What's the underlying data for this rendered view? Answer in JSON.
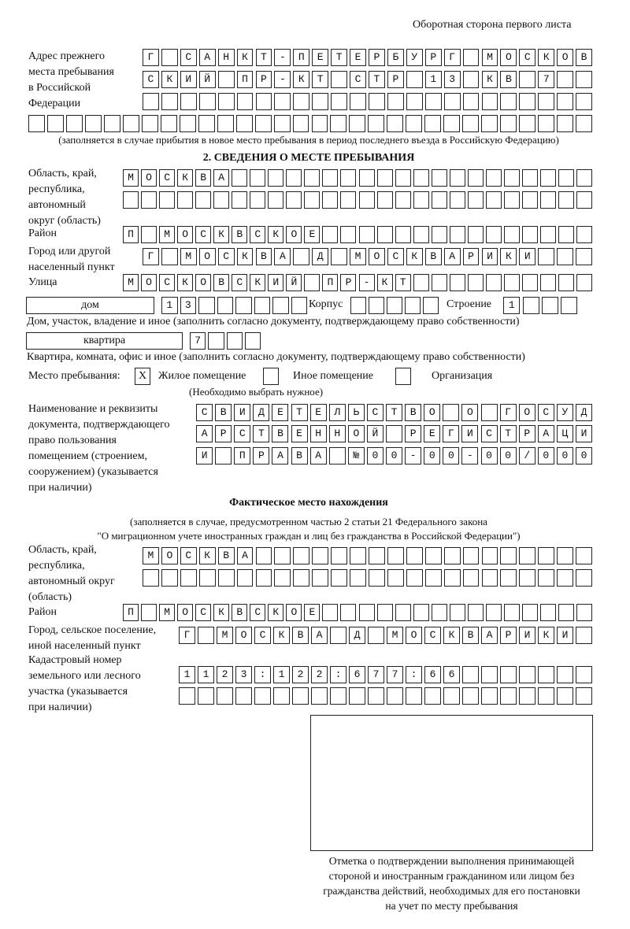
{
  "header": {
    "side_note": "Оборотная сторона первого листа"
  },
  "previous_address": {
    "label": [
      "Адрес прежнего",
      "места пребывания",
      "в Российской",
      "Федерации"
    ],
    "rows": [
      "Г САНКТ-ПЕТЕРБУРГ МОСКОВ",
      "СКИЙ ПР-КТ СТР 13 КВ 7  ",
      "                        ",
      "                              "
    ],
    "note": "(заполняется в случае прибытия в новое место пребывания в период последнего въезда в Российскую Федерацию)"
  },
  "section2": {
    "title": "2. СВЕДЕНИЯ О МЕСТЕ ПРЕБЫВАНИЯ",
    "region_label": [
      "Область, край,",
      "республика,",
      "автономный",
      "округ (область)"
    ],
    "region_rows": [
      "МОСКВА                    ",
      "                          "
    ],
    "district_label": "Район",
    "district_row": "П МОСКВСКОЕ               ",
    "city_label": [
      "Город или другой",
      "населенный пункт"
    ],
    "city_row": "Г МОСКВА Д МОСКВАРИКИ   ",
    "street_label": "Улица",
    "street_row": "МОСКОВСКИЙ ПР-КТ          ",
    "house_type": "дом",
    "house_row": "13      ",
    "korpus_label": "Корпус",
    "korpus_row": "     ",
    "building_label": "Строение",
    "building_row": "1   ",
    "house_note": "Дом, участок, владение и иное (заполнить согласно документу, подтверждающему право собственности)",
    "apartment_type": "квартира",
    "apartment_row": "7   ",
    "apartment_note": "Квартира, комната, офис и иное (заполнить согласно документу, подтверждающему право собственности)",
    "stay_place_label": "Место пребывания:",
    "stay_options": [
      {
        "mark": "X",
        "label": "Жилое помещение",
        "checked": true
      },
      {
        "mark": "",
        "label": "Иное помещение",
        "checked": false
      },
      {
        "mark": "",
        "label": "Организация",
        "checked": false
      }
    ],
    "stay_note": "(Необходимо выбрать нужное)",
    "document_label": [
      "Наименование и реквизиты",
      "документа, подтверждающего",
      "право пользования",
      "помещением (строением,",
      "сооружением) (указывается",
      "при наличии)"
    ],
    "document_rows": [
      "СВИДЕТЕЛЬСТВО О ГОСУД",
      "АРСТВЕННОЙ РЕГИСТРАЦИ",
      "И ПРАВА №00-00-00/000"
    ]
  },
  "actual": {
    "title": "Фактическое место нахождения",
    "note": [
      "(заполняется в случае, предусмотренном частью 2 статьи 21 Федерального закона",
      "\"О миграционном учете иностранных граждан и лиц без гражданства в Российской Федерации\")"
    ],
    "region_label": [
      "Область, край,",
      "республика,",
      "автономный округ",
      "(область)"
    ],
    "region_rows": [
      "МОСКВА                  ",
      "                        "
    ],
    "district_label": "Район",
    "district_row": "П МОСКВСКОЕ               ",
    "city_label": [
      "Город, сельское поселение,",
      "иной населенный пункт"
    ],
    "city_row": "Г МОСКВА Д МОСКВАРИКИ ",
    "cadastral_label": [
      "Кадастровый номер",
      "земельного или лесного",
      "участка (указывается",
      "при наличии)"
    ],
    "cadastral_rows": [
      "1123:122:677:66       ",
      "                      "
    ]
  },
  "confirmation": {
    "caption": [
      "Отметка о подтверждении выполнения принимающей",
      "стороной и иностранным гражданином или лицом без",
      "гражданства действий, необходимых для его постановки",
      "на учет по месту пребывания"
    ]
  }
}
